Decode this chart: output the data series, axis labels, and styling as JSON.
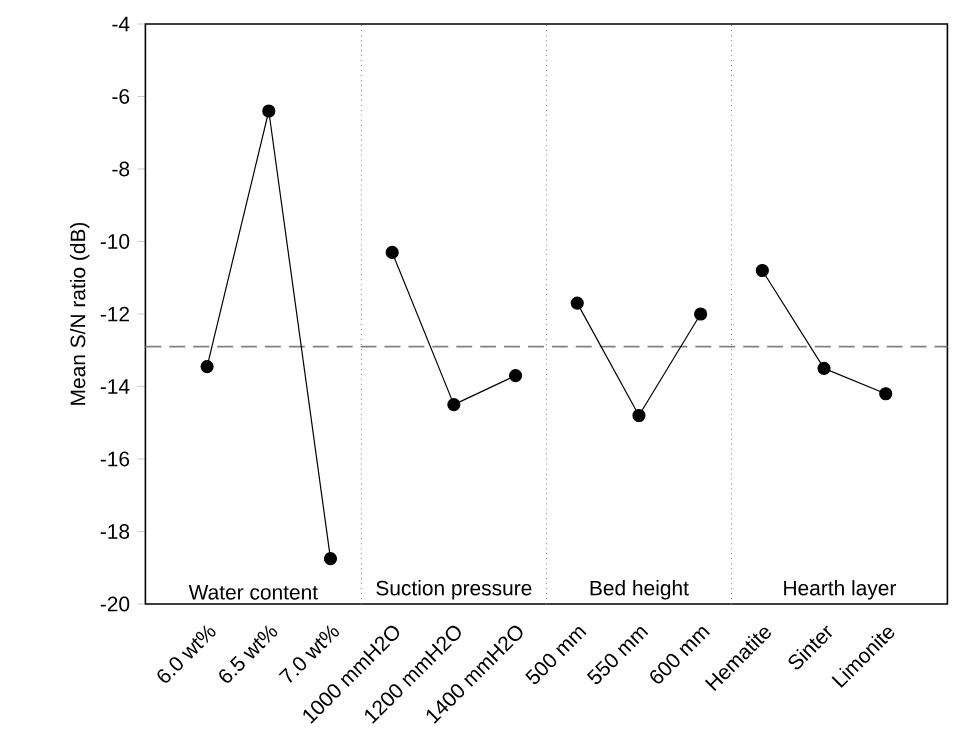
{
  "chart_data": {
    "type": "line",
    "ylabel": "Mean S/N ratio (dB)",
    "categories": [
      "6.0 wt%",
      "6.5 wt%",
      "7.0 wt%",
      "1000 mmH2O",
      "1200 mmH2O",
      "1400 mmH2O",
      "500 mm",
      "550 mm",
      "600 mm",
      "Hematite",
      "Sinter",
      "Limonite"
    ],
    "series": [
      {
        "color": "#000000",
        "values": [
          -13.45,
          -6.4,
          -18.75,
          null,
          null,
          null,
          null,
          null,
          null,
          null,
          null,
          null
        ]
      },
      {
        "color": "#000000",
        "values": [
          null,
          null,
          null,
          -10.3,
          -14.5,
          -13.7,
          null,
          null,
          null,
          null,
          null,
          null
        ]
      },
      {
        "color": "#000000",
        "values": [
          null,
          null,
          null,
          null,
          null,
          null,
          -11.7,
          -14.8,
          -12.0,
          null,
          null,
          null
        ]
      },
      {
        "color": "#000000",
        "values": [
          null,
          null,
          null,
          null,
          null,
          null,
          null,
          null,
          null,
          -10.8,
          -13.5,
          -14.2
        ]
      }
    ],
    "ylim": [
      -20,
      -4
    ],
    "yticks": [
      -20,
      -18,
      -16,
      -14,
      -12,
      -10,
      -8,
      -6,
      -4
    ],
    "ref_lines": [
      {
        "axis": "y",
        "value": -12.9,
        "color": "#808080",
        "line_style": "dashed"
      }
    ],
    "annotations": [
      "Water content",
      "Suction pressure",
      "Bed height",
      "Hearth layer"
    ],
    "marker": "circle",
    "line_style": "solid"
  }
}
